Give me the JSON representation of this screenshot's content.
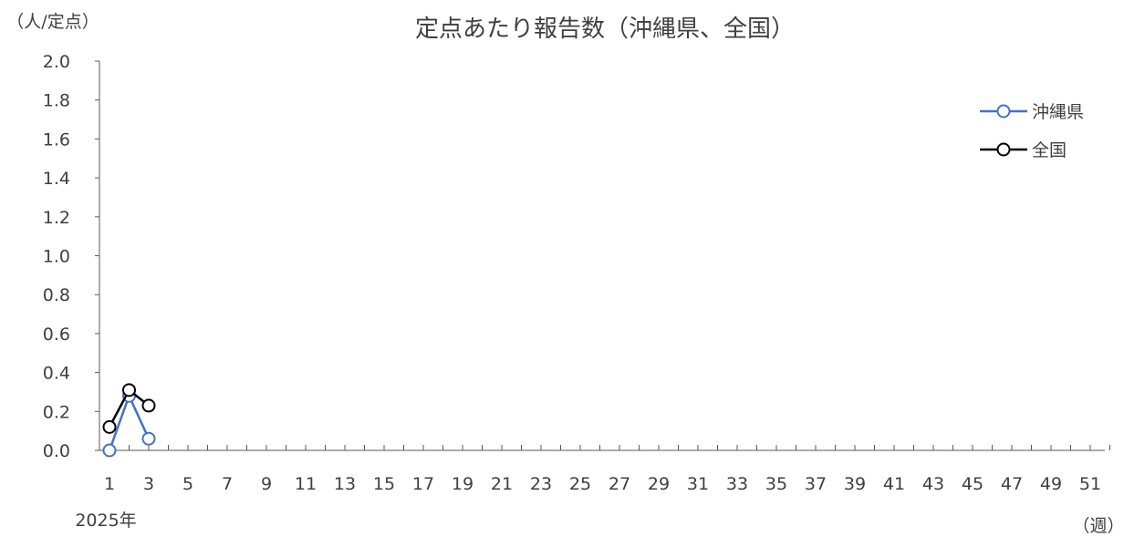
{
  "chart_data": {
    "type": "line",
    "title": "定点あたり報告数（沖縄県、全国）",
    "y_unit_label": "（人/定点）",
    "x_unit_label": "（週）",
    "year_label": "2025年",
    "ylim": [
      0,
      2.0
    ],
    "y_ticks": [
      "0.0",
      "0.2",
      "0.4",
      "0.6",
      "0.8",
      "1.0",
      "1.2",
      "1.4",
      "1.6",
      "1.8",
      "2.0"
    ],
    "xlim": [
      1,
      52
    ],
    "x_tick_labels": [
      "1",
      "3",
      "5",
      "7",
      "9",
      "11",
      "13",
      "15",
      "17",
      "19",
      "21",
      "23",
      "25",
      "27",
      "29",
      "31",
      "33",
      "35",
      "37",
      "39",
      "41",
      "43",
      "45",
      "47",
      "49",
      "51"
    ],
    "grid": false,
    "legend_position": "top-right",
    "series": [
      {
        "name": "沖縄県",
        "color": "#4472c4",
        "x": [
          1,
          2,
          3
        ],
        "values": [
          0.0,
          0.28,
          0.06
        ]
      },
      {
        "name": "全国",
        "color": "#000000",
        "x": [
          1,
          2,
          3
        ],
        "values": [
          0.12,
          0.31,
          0.23
        ]
      }
    ]
  }
}
